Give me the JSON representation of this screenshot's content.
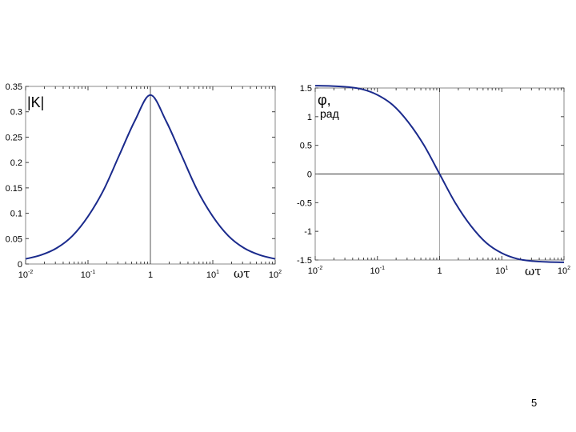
{
  "page_number": "5",
  "chart_data": [
    {
      "type": "line",
      "xscale": "log",
      "xlim": [
        0.01,
        100
      ],
      "ylim": [
        0,
        0.35
      ],
      "xticks": [
        {
          "base": "10",
          "exp": "-2",
          "value": 0.01
        },
        {
          "base": "10",
          "exp": "-1",
          "value": 0.1
        },
        {
          "base": "1",
          "exp": "",
          "value": 1
        },
        {
          "base": "10",
          "exp": "1",
          "value": 10
        },
        {
          "base": "10",
          "exp": "2",
          "value": 100
        }
      ],
      "yticks": [
        "0",
        "0.05",
        "0.1",
        "0.15",
        "0.2",
        "0.25",
        "0.3",
        "0.35"
      ],
      "ytick_values": [
        0,
        0.05,
        0.1,
        0.15,
        0.2,
        0.25,
        0.3,
        0.35
      ],
      "ylabel": "|K|",
      "ylabel_sub": "",
      "xlabel": "ωτ",
      "reference_lines": {
        "x": 1
      },
      "line_color": "#1a2a8c",
      "series": [
        {
          "x": [
            0.01,
            0.0178,
            0.0316,
            0.0562,
            0.1,
            0.178,
            0.316,
            0.562,
            1,
            1.78,
            3.16,
            5.62,
            10,
            17.8,
            31.6,
            56.2,
            100
          ],
          "y": [
            0.01,
            0.0178,
            0.0315,
            0.0553,
            0.0937,
            0.146,
            0.214,
            0.282,
            0.333,
            0.282,
            0.214,
            0.146,
            0.0937,
            0.0553,
            0.0315,
            0.0178,
            0.01
          ]
        }
      ]
    },
    {
      "type": "line",
      "xscale": "log",
      "xlim": [
        0.01,
        100
      ],
      "ylim": [
        -1.5,
        1.5
      ],
      "xticks": [
        {
          "base": "10",
          "exp": "-2",
          "value": 0.01
        },
        {
          "base": "10",
          "exp": "-1",
          "value": 0.1
        },
        {
          "base": "1",
          "exp": "",
          "value": 1
        },
        {
          "base": "10",
          "exp": "1",
          "value": 10
        },
        {
          "base": "10",
          "exp": "2",
          "value": 100
        }
      ],
      "yticks": [
        "1.5",
        "1",
        "0.5",
        "0",
        "-0.5",
        "-1",
        "-1.5"
      ],
      "ytick_values": [
        1.5,
        1,
        0.5,
        0,
        -0.5,
        -1,
        -1.5
      ],
      "ylabel": "φ,",
      "ylabel_sub": "рад",
      "xlabel": "ωτ",
      "reference_lines": {
        "x": 1,
        "y": 0
      },
      "line_color": "#1a2a8c",
      "series": [
        {
          "x": [
            0.01,
            0.0178,
            0.0316,
            0.0562,
            0.1,
            0.178,
            0.316,
            0.562,
            1,
            1.78,
            3.16,
            5.62,
            10,
            17.8,
            31.6,
            56.2,
            100
          ],
          "y": [
            1.54,
            1.535,
            1.52,
            1.48,
            1.38,
            1.2,
            0.9,
            0.5,
            0,
            -0.5,
            -0.9,
            -1.2,
            -1.38,
            -1.48,
            -1.52,
            -1.535,
            -1.54
          ]
        }
      ]
    }
  ]
}
